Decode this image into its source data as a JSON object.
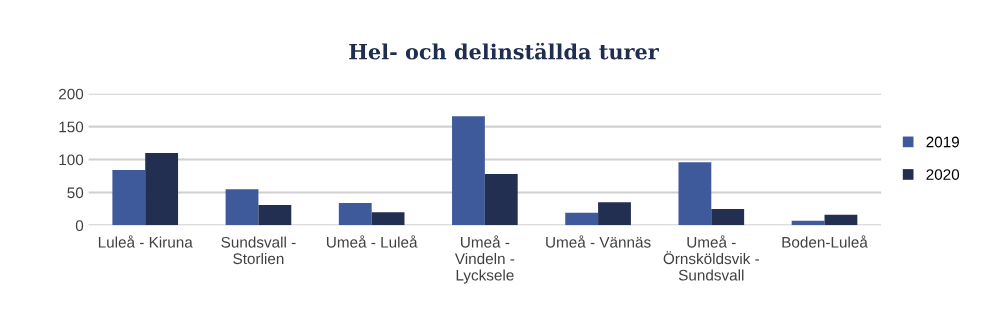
{
  "chart_data": {
    "type": "bar",
    "title": "Hel- och delinställda turer",
    "categories": [
      "Luleå - Kiruna",
      "Sundsvall -\nStorlien",
      "Umeå - Luleå",
      "Umeå -\nVindeln -\nLycksele",
      "Umeå - Vännäs",
      "Umeå -\nÖrnsköldsvik -\nSundsvall",
      "Boden-Luleå"
    ],
    "series": [
      {
        "name": "2019",
        "color": "#3f5a9b",
        "values": [
          84,
          55,
          34,
          166,
          19,
          96,
          7
        ]
      },
      {
        "name": "2020",
        "color": "#222f50",
        "values": [
          110,
          31,
          20,
          78,
          35,
          25,
          16
        ]
      }
    ],
    "ylim": [
      0,
      200
    ],
    "yticks": [
      0,
      50,
      100,
      150,
      200
    ],
    "grid": "y",
    "legend": "right"
  }
}
